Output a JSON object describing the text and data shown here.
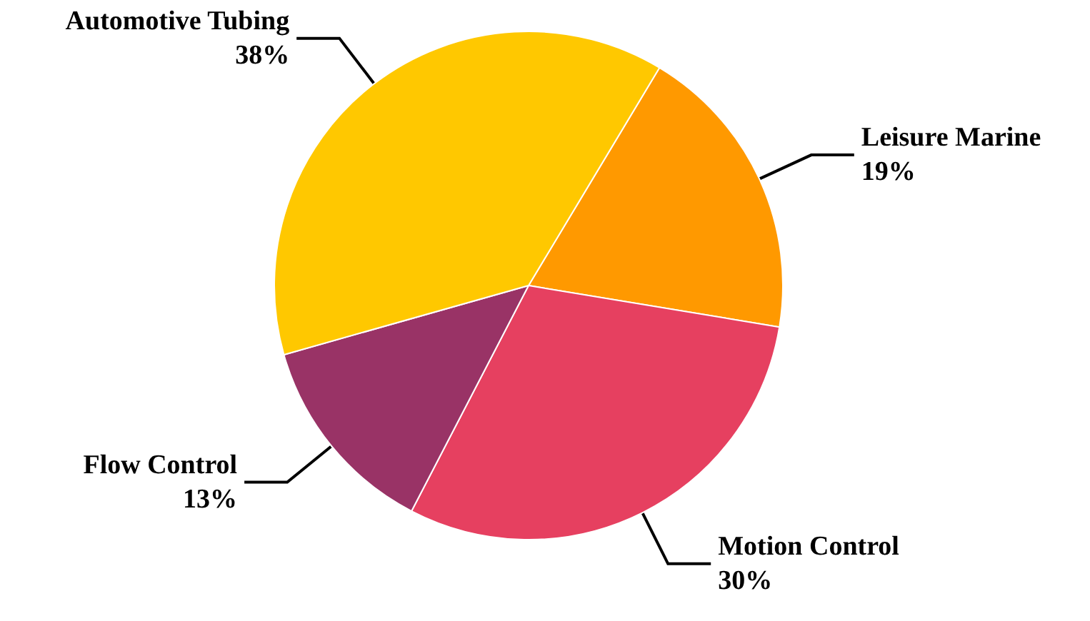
{
  "chart_data": {
    "type": "pie",
    "categories": [
      "Leisure Marine",
      "Motion Control",
      "Flow Control",
      "Automotive Tubing"
    ],
    "values": [
      19,
      30,
      13,
      38
    ],
    "colors": [
      "#ff9900",
      "#e64060",
      "#993366",
      "#ffc800"
    ],
    "value_labels": [
      "19%",
      "30%",
      "13%",
      "38%"
    ],
    "legend": false
  }
}
